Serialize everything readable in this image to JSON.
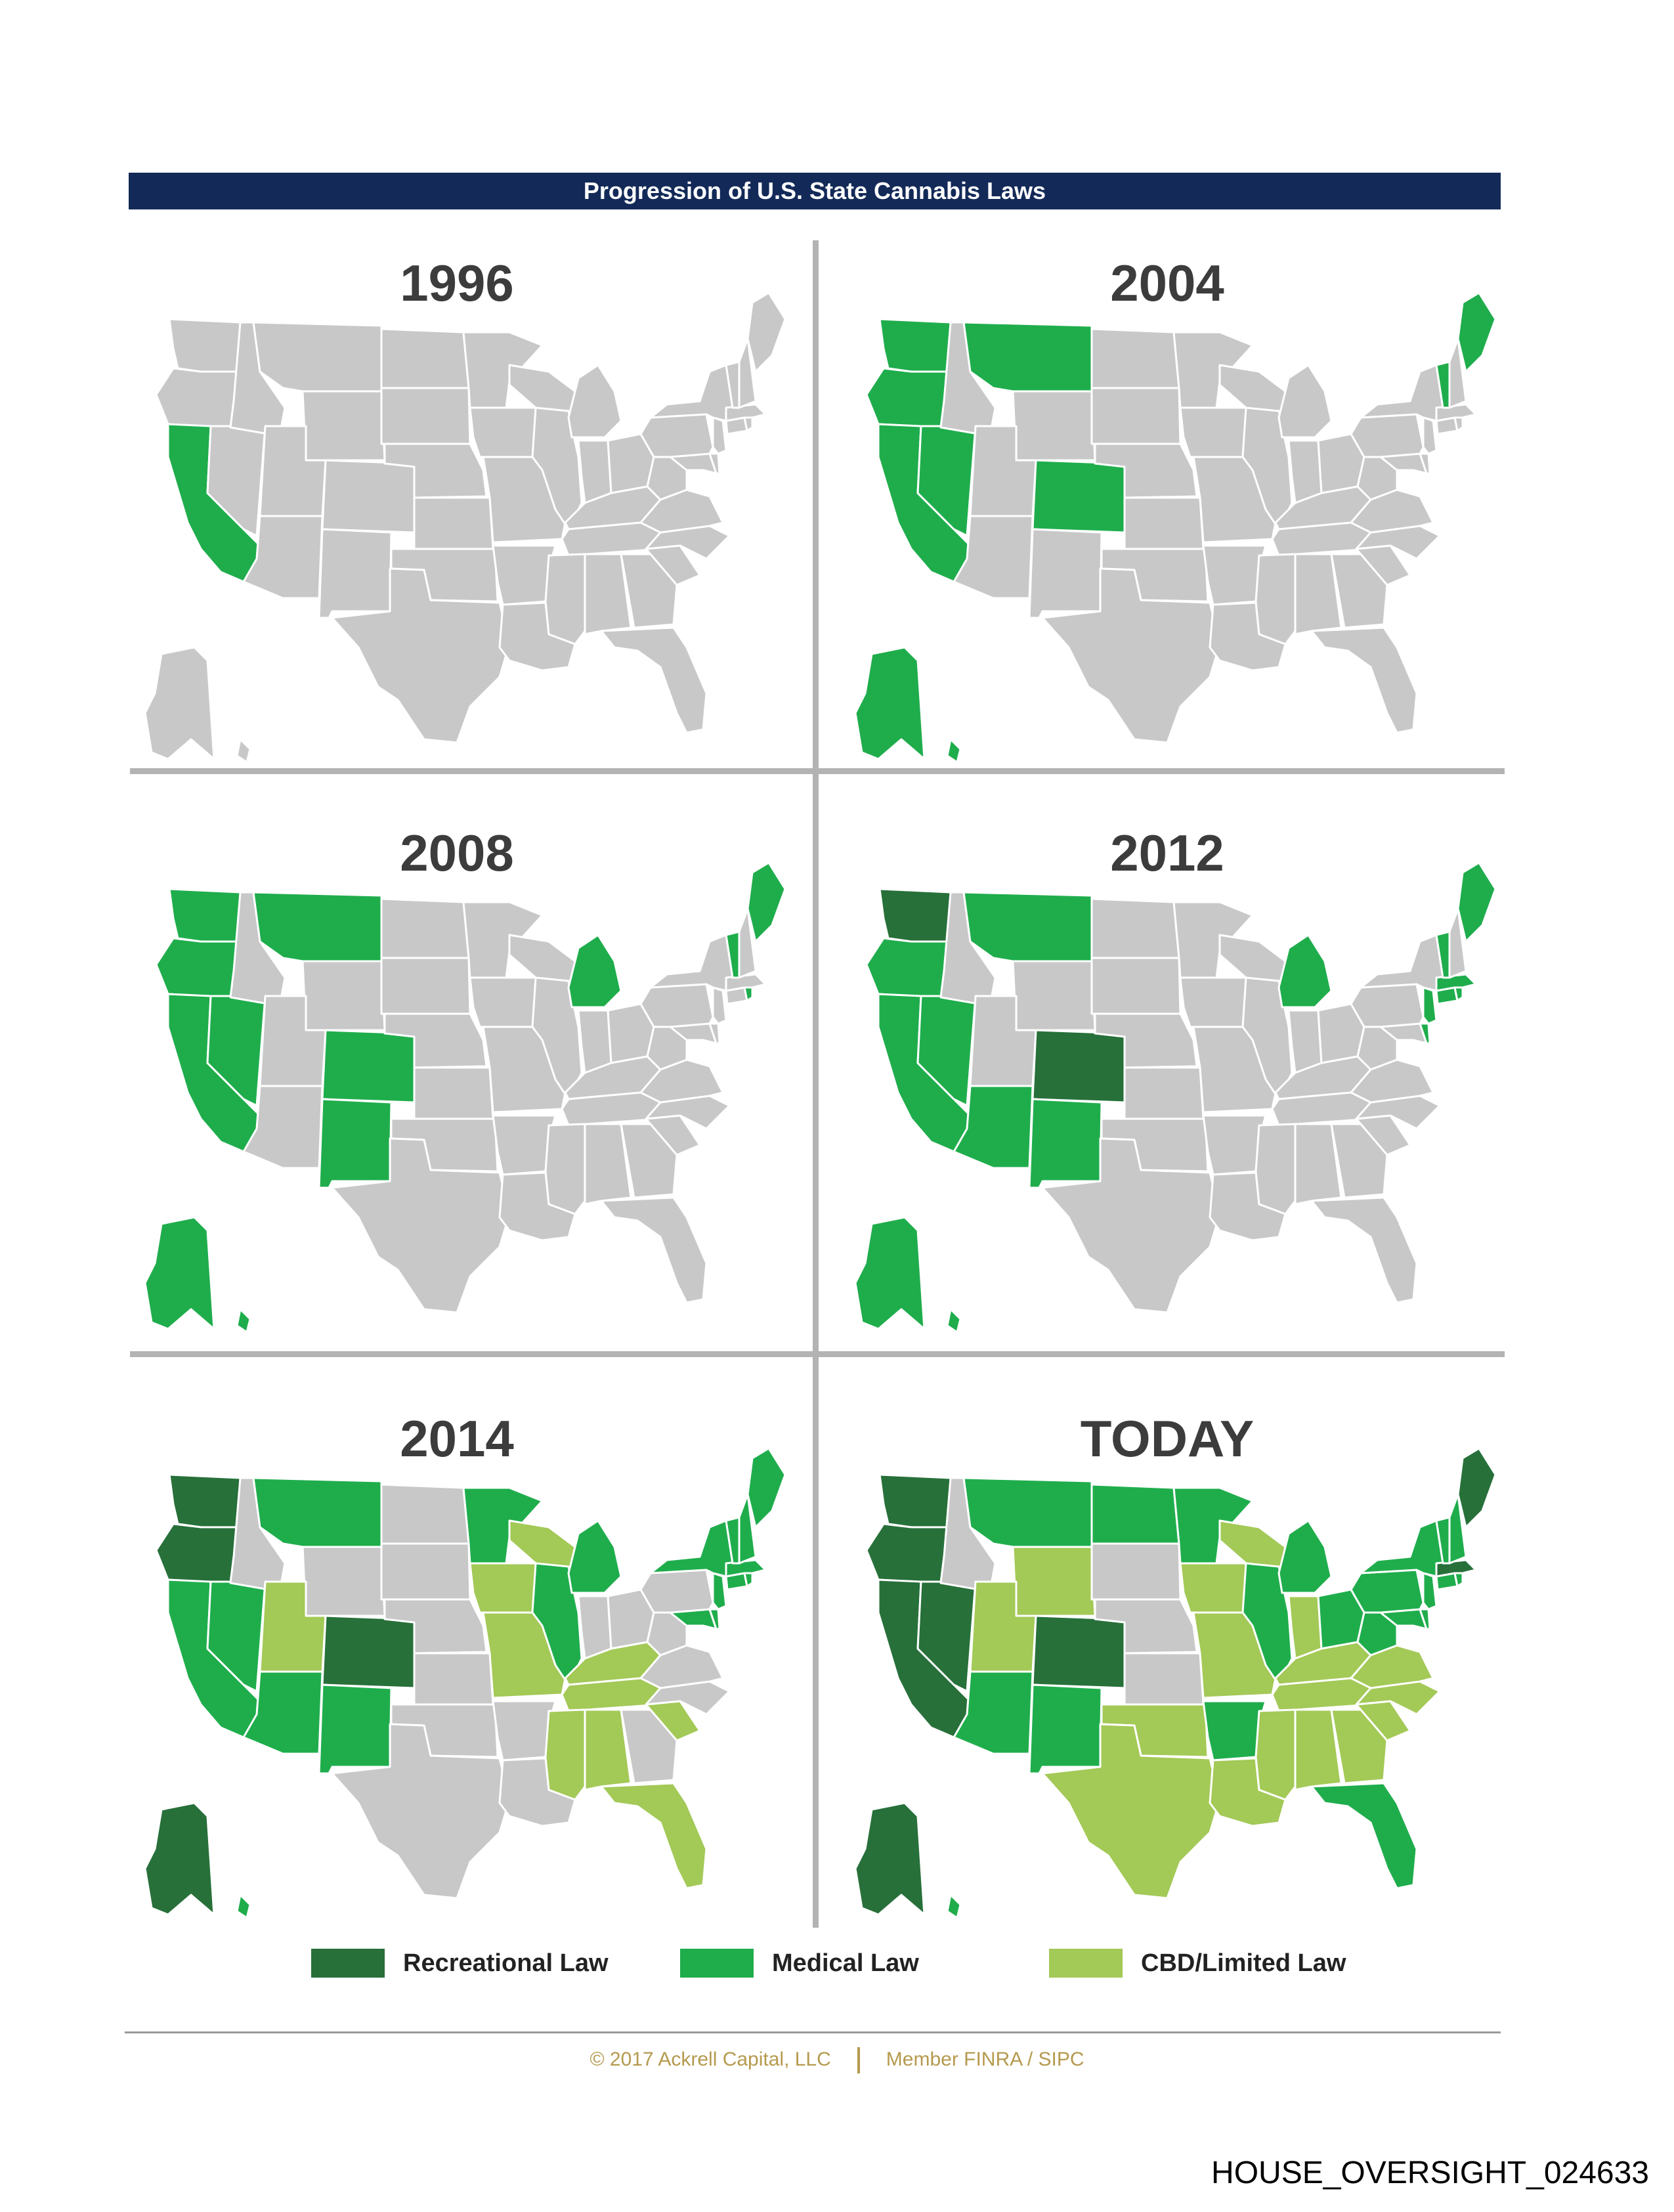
{
  "title": "Progression of U.S. State Cannabis Laws",
  "colors": {
    "recreational": "#27703a",
    "medical": "#1fad4c",
    "cbd_limited": "#a3c957",
    "none": "#c8c8c8",
    "border": "#ffffff",
    "title_bar": "#132a58"
  },
  "panels": [
    {
      "label": "1996",
      "states": {
        "CA": "medical"
      }
    },
    {
      "label": "2004",
      "states": {
        "WA": "medical",
        "OR": "medical",
        "CA": "medical",
        "NV": "medical",
        "MT": "medical",
        "CO": "medical",
        "AK": "medical",
        "HI": "medical",
        "ME": "medical",
        "VT": "medical"
      }
    },
    {
      "label": "2008",
      "states": {
        "WA": "medical",
        "OR": "medical",
        "CA": "medical",
        "NV": "medical",
        "MT": "medical",
        "CO": "medical",
        "NM": "medical",
        "AK": "medical",
        "HI": "medical",
        "MI": "medical",
        "ME": "medical",
        "VT": "medical",
        "RI": "medical"
      }
    },
    {
      "label": "2012",
      "states": {
        "WA": "recreational",
        "CO": "recreational",
        "OR": "medical",
        "CA": "medical",
        "NV": "medical",
        "MT": "medical",
        "AZ": "medical",
        "NM": "medical",
        "AK": "medical",
        "HI": "medical",
        "MI": "medical",
        "ME": "medical",
        "VT": "medical",
        "RI": "medical",
        "NJ": "medical",
        "DE": "medical",
        "CT": "medical",
        "MA": "medical"
      }
    },
    {
      "label": "2014",
      "states": {
        "WA": "recreational",
        "OR": "recreational",
        "CO": "recreational",
        "AK": "recreational",
        "CA": "medical",
        "NV": "medical",
        "MT": "medical",
        "AZ": "medical",
        "NM": "medical",
        "HI": "medical",
        "MN": "medical",
        "IL": "medical",
        "MI": "medical",
        "NY": "medical",
        "ME": "medical",
        "VT": "medical",
        "NH": "medical",
        "MA": "medical",
        "RI": "medical",
        "CT": "medical",
        "NJ": "medical",
        "DE": "medical",
        "MD": "medical",
        "UT": "cbd_limited",
        "IA": "cbd_limited",
        "WI": "cbd_limited",
        "MO": "cbd_limited",
        "KY": "cbd_limited",
        "TN": "cbd_limited",
        "MS": "cbd_limited",
        "AL": "cbd_limited",
        "FL": "cbd_limited",
        "SC": "cbd_limited"
      }
    },
    {
      "label": "TODAY",
      "states": {
        "WA": "recreational",
        "OR": "recreational",
        "CA": "recreational",
        "NV": "recreational",
        "CO": "recreational",
        "AK": "recreational",
        "ME": "recreational",
        "MA": "recreational",
        "MT": "medical",
        "ND": "medical",
        "MN": "medical",
        "AZ": "medical",
        "NM": "medical",
        "AR": "medical",
        "IL": "medical",
        "MI": "medical",
        "OH": "medical",
        "PA": "medical",
        "NY": "medical",
        "WV": "medical",
        "FL": "medical",
        "HI": "medical",
        "VT": "medical",
        "NH": "medical",
        "RI": "medical",
        "CT": "medical",
        "NJ": "medical",
        "DE": "medical",
        "MD": "medical",
        "WY": "cbd_limited",
        "UT": "cbd_limited",
        "TX": "cbd_limited",
        "OK": "cbd_limited",
        "LA": "cbd_limited",
        "MS": "cbd_limited",
        "AL": "cbd_limited",
        "GA": "cbd_limited",
        "SC": "cbd_limited",
        "NC": "cbd_limited",
        "TN": "cbd_limited",
        "KY": "cbd_limited",
        "VA": "cbd_limited",
        "IN": "cbd_limited",
        "IA": "cbd_limited",
        "WI": "cbd_limited",
        "MO": "cbd_limited"
      }
    }
  ],
  "legend": [
    {
      "key": "recreational",
      "label": "Recreational Law"
    },
    {
      "key": "medical",
      "label": "Medical Law"
    },
    {
      "key": "cbd_limited",
      "label": "CBD/Limited Law"
    }
  ],
  "footer": {
    "copyright": "© 2017 Ackrell Capital, LLC",
    "member": "Member FINRA / SIPC"
  },
  "doc_id": "HOUSE_OVERSIGHT_024633"
}
